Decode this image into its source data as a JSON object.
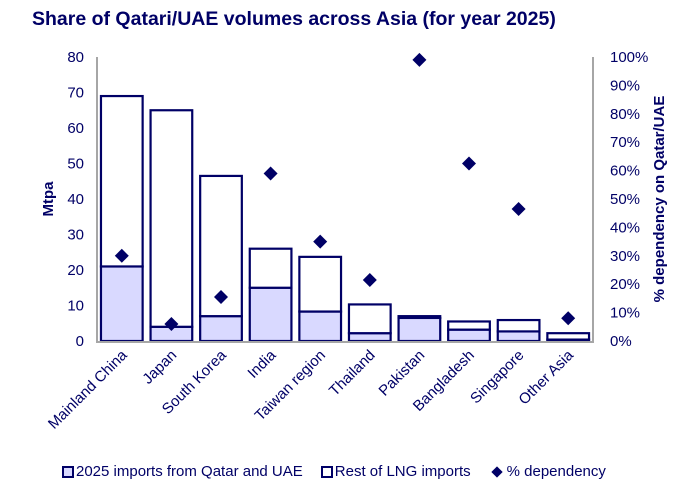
{
  "chart_data": {
    "type": "bar",
    "subtype": "stacked-bar-with-scatter-secondary-axis",
    "title": "Share of Qatari/UAE volumes across Asia (for year 2025)",
    "xlabel": "",
    "ylabel": "Mtpa",
    "y2label": "% dependency on Qatar/UAE",
    "ylim": [
      0,
      80
    ],
    "yticks": [
      "0",
      "10",
      "20",
      "30",
      "40",
      "50",
      "60",
      "70",
      "80"
    ],
    "y2lim": [
      0,
      100
    ],
    "y2ticks": [
      "0%",
      "10%",
      "20%",
      "30%",
      "40%",
      "50%",
      "60%",
      "70%",
      "80%",
      "90%",
      "100%"
    ],
    "grid": false,
    "legend_position": "bottom",
    "categories": [
      "Mainland China",
      "Japan",
      "South Korea",
      "India",
      "Taiwan region",
      "Thailand",
      "Pakistan",
      "Bangladesh",
      "Singapore",
      "Other Asia"
    ],
    "series": [
      {
        "name": "2025 imports from Qatar and UAE",
        "kind": "bar",
        "axis": "left",
        "color": "#d9d9ff",
        "edge": "#000066",
        "values": [
          21,
          4,
          7,
          15,
          8.3,
          2.2,
          6.5,
          3.2,
          2.7,
          0.4
        ]
      },
      {
        "name": "Rest of LNG imports",
        "kind": "bar",
        "axis": "left",
        "color": "#ffffff",
        "edge": "#000066",
        "values": [
          48,
          61,
          39.5,
          11,
          15.4,
          8.1,
          0.5,
          2.3,
          3.2,
          1.8
        ]
      },
      {
        "name": "% dependency",
        "kind": "scatter",
        "marker": "diamond",
        "axis": "right",
        "color": "#000066",
        "values": [
          30,
          6,
          15.5,
          59,
          35,
          21.5,
          99,
          62.5,
          46.5,
          8
        ]
      }
    ]
  }
}
